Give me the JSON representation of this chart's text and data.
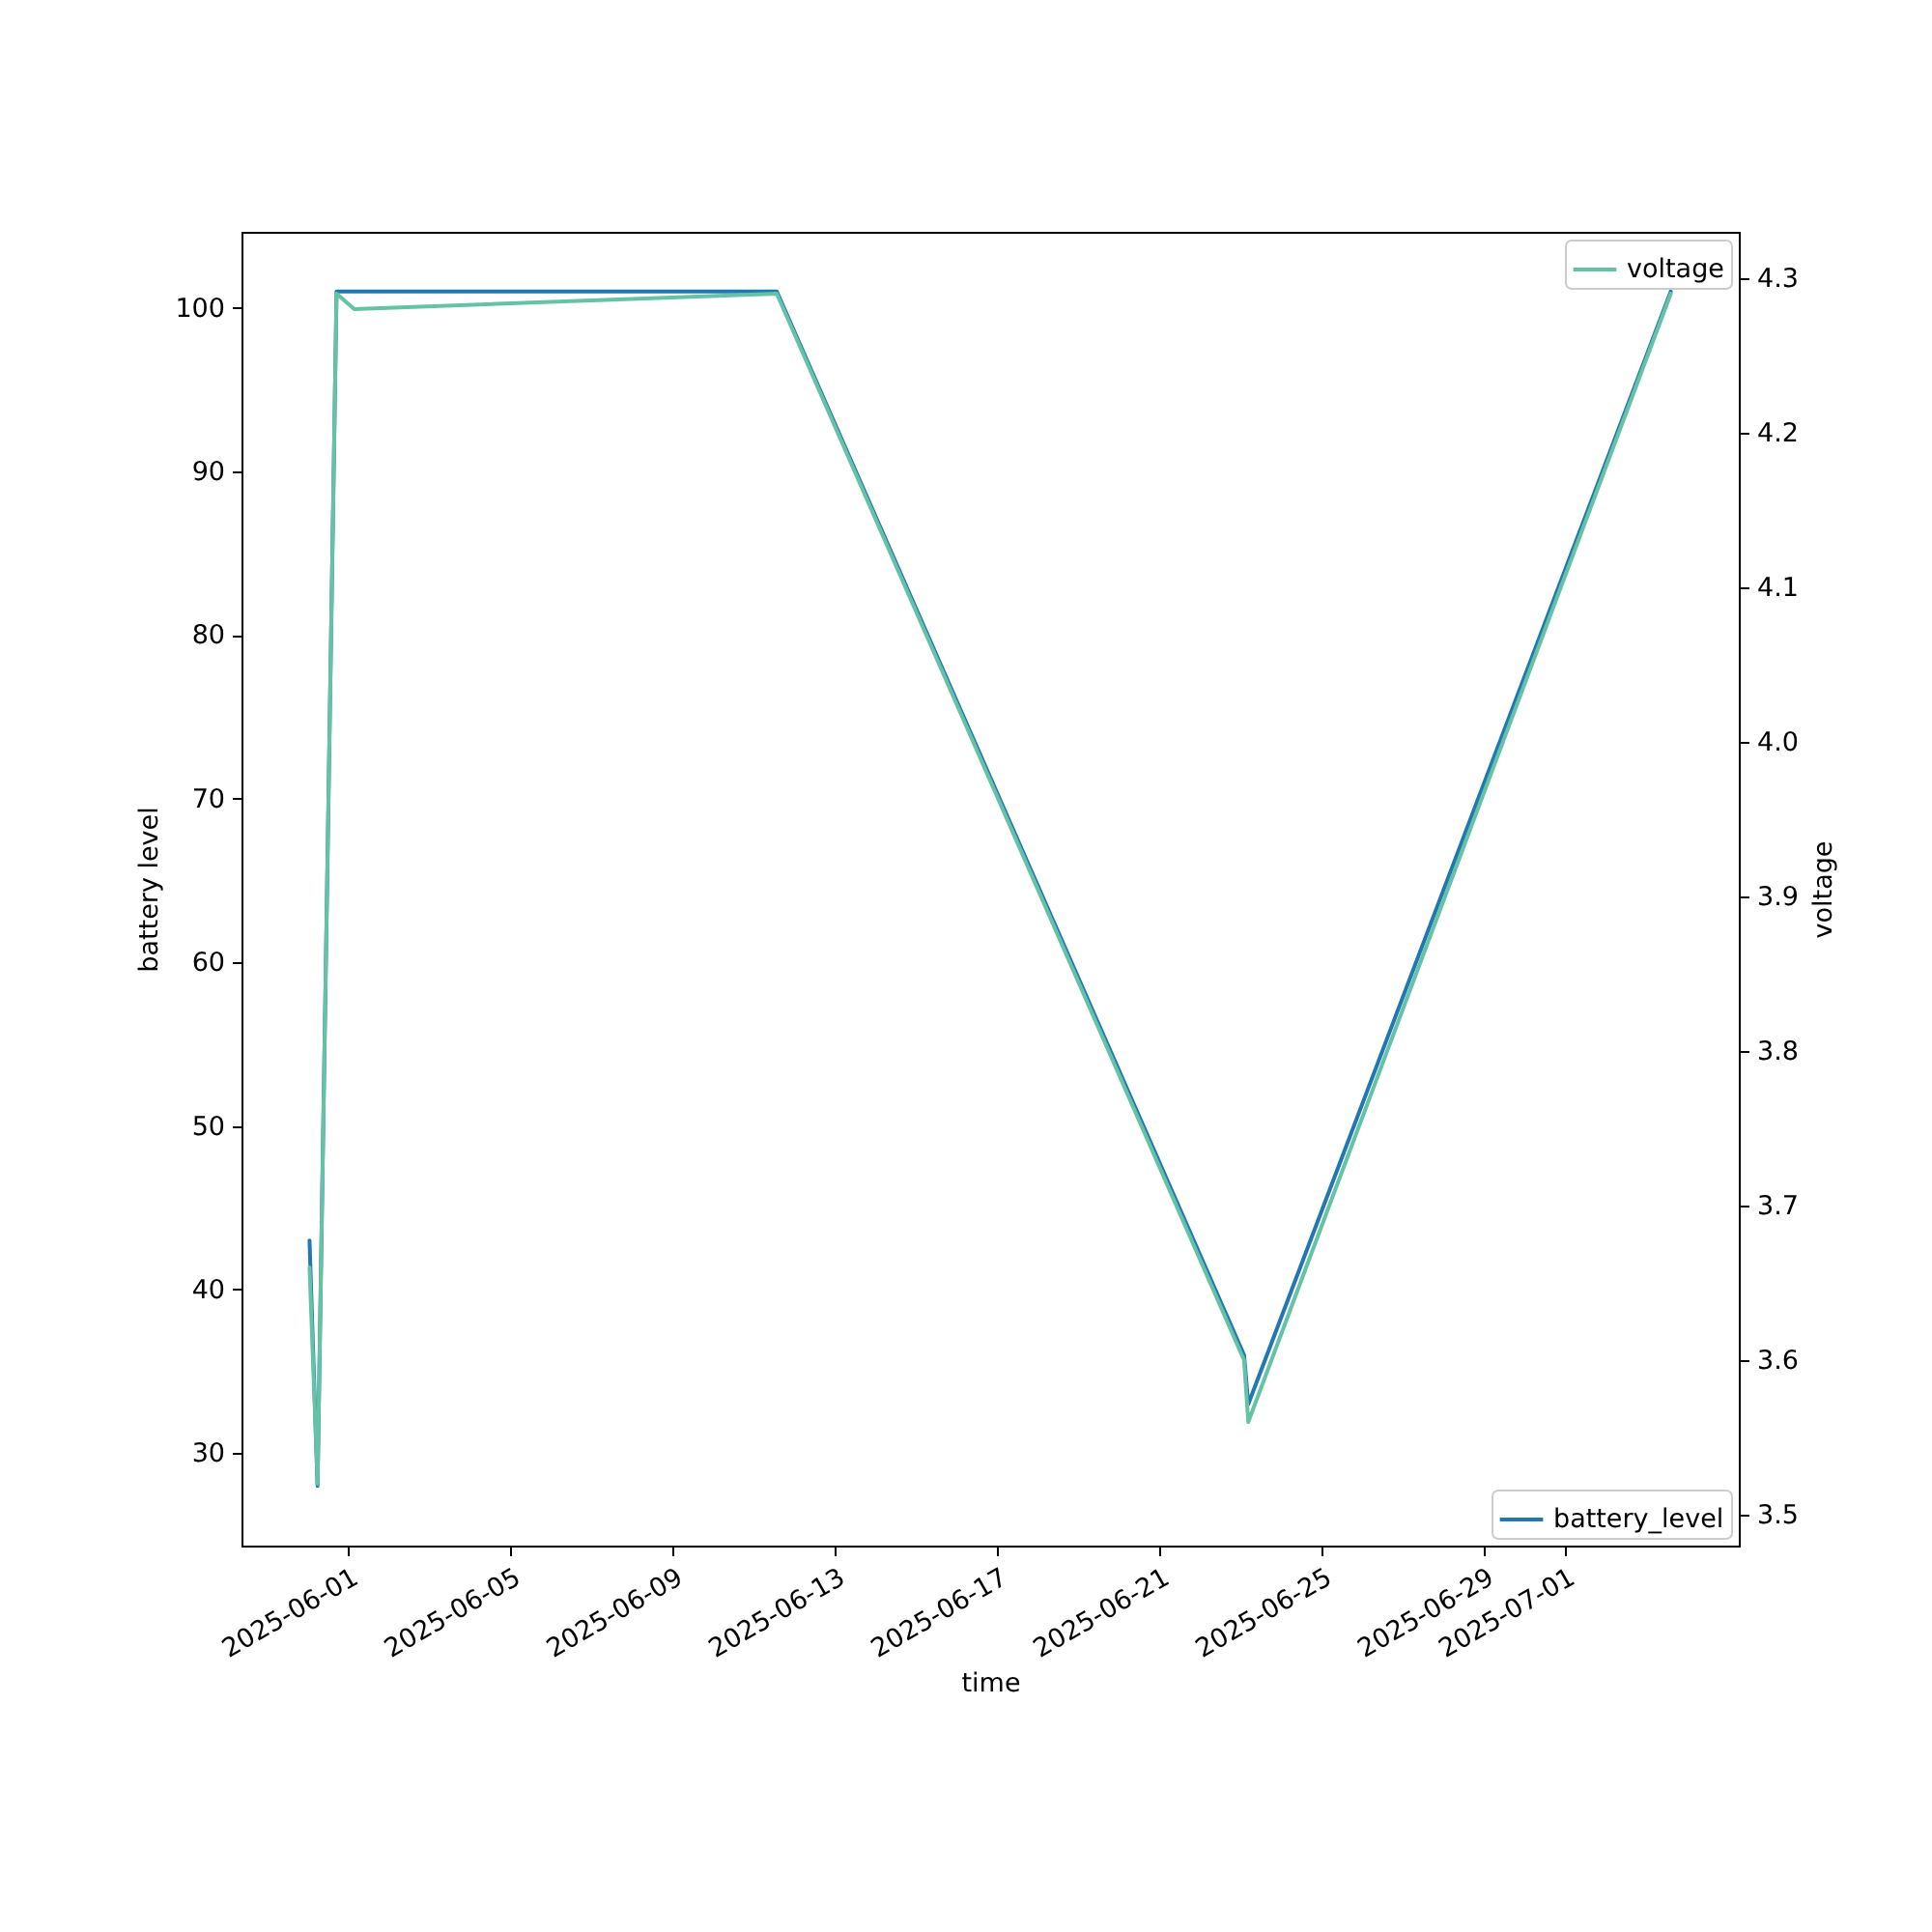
{
  "chart_data": {
    "type": "line",
    "xlabel": "time",
    "ylabel": "battery level",
    "y2label": "voltage",
    "xlim": [
      "2025-05-29T08:45",
      "2025-07-05T06:45"
    ],
    "xticks": [
      "2025-06-01",
      "2025-06-05",
      "2025-06-09",
      "2025-06-13",
      "2025-06-17",
      "2025-06-21",
      "2025-06-25",
      "2025-06-29",
      "2025-07-01"
    ],
    "ylim": [
      24.35,
      104.65
    ],
    "yticks": [
      30,
      40,
      50,
      60,
      70,
      80,
      90,
      100
    ],
    "y2lim": [
      3.48,
      4.33
    ],
    "y2ticks": [
      3.5,
      3.6,
      3.7,
      3.8,
      3.9,
      {
        "value": 4,
        "label": "4.0"
      },
      4.1,
      4.2,
      4.3
    ],
    "series": [
      {
        "name": "battery_level",
        "color": "#1f77b4",
        "x": [
          "2025-05-31T01:00",
          "2025-05-31T05:45",
          "2025-05-31T17:00",
          "2025-06-11T13:30",
          "2025-06-23T02:00",
          "2025-06-23T04:30",
          "2025-07-03T14:30"
        ],
        "values": [
          43,
          28,
          101,
          101,
          36,
          33,
          101
        ]
      },
      {
        "name": "voltage",
        "color": "#66c2a5",
        "axis": "y2",
        "x": [
          "2025-05-31T01:00",
          "2025-05-31T05:45",
          "2025-05-31T17:00",
          "2025-06-01T03:30",
          "2025-06-11T13:30",
          "2025-06-23T02:00",
          "2025-06-23T04:30",
          "2025-07-03T14:30"
        ],
        "values": [
          3.66,
          3.52,
          4.29,
          4.28,
          4.29,
          3.6,
          3.56,
          4.29
        ]
      }
    ],
    "legend": "right"
  }
}
